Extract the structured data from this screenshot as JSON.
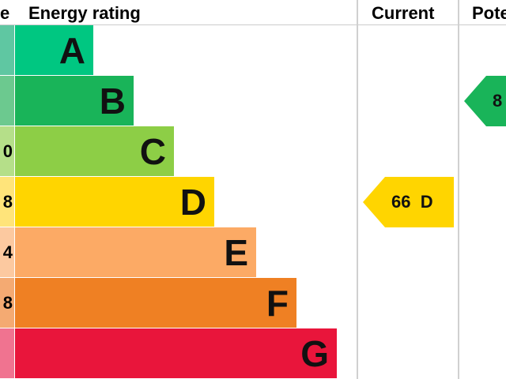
{
  "chart_data": {
    "type": "bar",
    "headers": {
      "score": "e",
      "rating": "Energy rating",
      "current": "Current",
      "potential": "Pote"
    },
    "categories": [
      "A",
      "B",
      "C",
      "D",
      "E",
      "F",
      "G"
    ],
    "score_fragments": [
      "",
      "",
      "0",
      "8",
      "4",
      "8",
      ""
    ],
    "colors": [
      "#00c781",
      "#19b459",
      "#8dce46",
      "#ffd500",
      "#fcaa65",
      "#ef8023",
      "#e9153b"
    ],
    "strip_colors": [
      "#5fc7a2",
      "#6cc98f",
      "#b5df89",
      "#ffe47a",
      "#fcc9a0",
      "#f4aa72",
      "#f07390"
    ],
    "current": {
      "value": 66,
      "band": "D",
      "label": "66  D",
      "color": "#ffd500"
    },
    "potential": {
      "value_fragment": "8",
      "band": "B",
      "color": "#19b459"
    }
  }
}
